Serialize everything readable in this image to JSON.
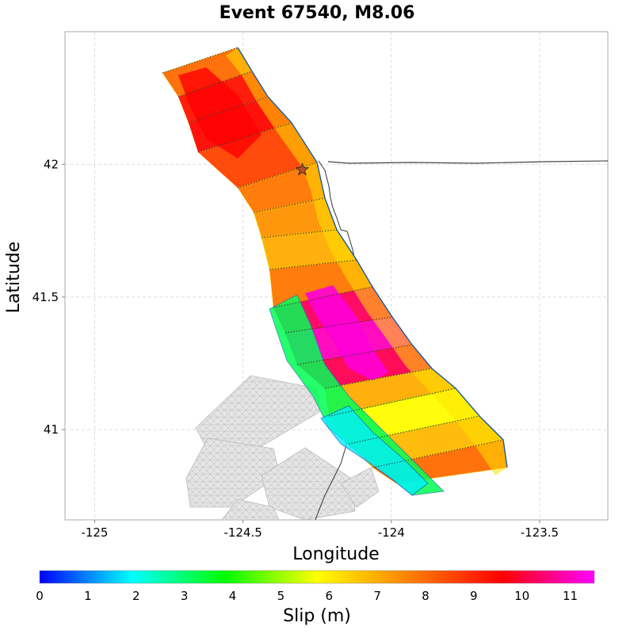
{
  "chart_data": {
    "type": "heatmap",
    "title": "Event 67540, M8.06",
    "xlabel": "Longitude",
    "ylabel": "Latitude",
    "xlim": [
      -125.1,
      -123.27
    ],
    "ylim": [
      40.66,
      42.5
    ],
    "x_ticks": [
      -125,
      -124.5,
      -124,
      -123.5
    ],
    "x_tick_labels": [
      "-125",
      "-124.5",
      "-124",
      "-123.5"
    ],
    "y_ticks": [
      41,
      41.5,
      42
    ],
    "y_tick_labels": [
      "41",
      "41.5",
      "42"
    ],
    "grid": true,
    "hypocenter": {
      "lon": -124.3,
      "lat": 41.98,
      "marker": "star"
    },
    "colorbar": {
      "label": "Slip (m)",
      "range": [
        0,
        11.5
      ],
      "ticks": [
        0,
        1,
        2,
        3,
        4,
        5,
        6,
        7,
        8,
        9,
        10,
        11
      ],
      "tick_labels": [
        "0",
        "1",
        "2",
        "3",
        "4",
        "5",
        "6",
        "7",
        "8",
        "9",
        "10",
        "11"
      ],
      "stops": [
        "#0000ff",
        "#00ffff",
        "#00ff00",
        "#ffff00",
        "#ff8000",
        "#ff0000",
        "#ff00ff"
      ]
    },
    "rupture_segments": [
      {
        "top": [
          [
            -124.71,
            42.33
          ],
          [
            -124.53,
            42.38
          ],
          [
            -124.4,
            42.4
          ]
        ],
        "bottom": [
          [
            -124.65,
            42.3
          ],
          [
            -124.53,
            42.36
          ],
          [
            -124.48,
            42.38
          ]
        ],
        "slip": 8.0
      },
      {
        "top": [
          [
            -124.62,
            42.22
          ],
          [
            -124.45,
            42.23
          ],
          [
            -124.36,
            42.2
          ]
        ],
        "slip": 9.3
      },
      {
        "top": [
          [
            -124.58,
            42.12
          ],
          [
            -124.38,
            42.1
          ],
          [
            -124.28,
            42.06
          ]
        ],
        "slip": 9.5
      },
      {
        "top": [
          [
            -124.55,
            42.0
          ],
          [
            -124.38,
            41.96
          ],
          [
            -124.23,
            41.98
          ]
        ],
        "slip": 8.6
      },
      {
        "top": [
          [
            -124.48,
            41.88
          ],
          [
            -124.33,
            41.86
          ],
          [
            -124.22,
            41.88
          ]
        ],
        "slip": 7.8
      },
      {
        "top": [
          [
            -124.45,
            41.77
          ],
          [
            -124.32,
            41.76
          ],
          [
            -124.2,
            41.78
          ]
        ],
        "slip": 7.4
      },
      {
        "top": [
          [
            -124.43,
            41.67
          ],
          [
            -124.3,
            41.66
          ],
          [
            -124.18,
            41.68
          ]
        ],
        "slip": 7.0
      },
      {
        "top": [
          [
            -124.42,
            41.57
          ],
          [
            -124.29,
            41.56
          ],
          [
            -124.13,
            41.57
          ]
        ],
        "slip": 7.8
      },
      {
        "top": [
          [
            -124.4,
            41.48
          ],
          [
            -124.25,
            41.47
          ],
          [
            -124.06,
            41.47
          ]
        ],
        "slip": 10.3
      },
      {
        "top": [
          [
            -124.38,
            41.38
          ],
          [
            -124.19,
            41.38
          ],
          [
            -124.02,
            41.37
          ]
        ],
        "slip": 11.0
      },
      {
        "top": [
          [
            -124.35,
            41.28
          ],
          [
            -124.15,
            41.28
          ],
          [
            -123.95,
            41.28
          ]
        ],
        "slip": 10.2
      },
      {
        "top": [
          [
            -124.3,
            41.18
          ],
          [
            -124.1,
            41.18
          ],
          [
            -123.85,
            41.19
          ]
        ],
        "slip": 7.0
      },
      {
        "top": [
          [
            -124.22,
            41.08
          ],
          [
            -124.02,
            41.08
          ],
          [
            -123.77,
            41.08
          ]
        ],
        "slip": 5.8
      },
      {
        "top": [
          [
            -124.18,
            40.98
          ],
          [
            -123.97,
            40.98
          ],
          [
            -123.72,
            40.98
          ]
        ],
        "slip": 6.8
      },
      {
        "top": [
          [
            -124.1,
            40.88
          ],
          [
            -123.9,
            40.88
          ],
          [
            -123.65,
            40.88
          ]
        ],
        "slip": 8.0
      }
    ]
  }
}
